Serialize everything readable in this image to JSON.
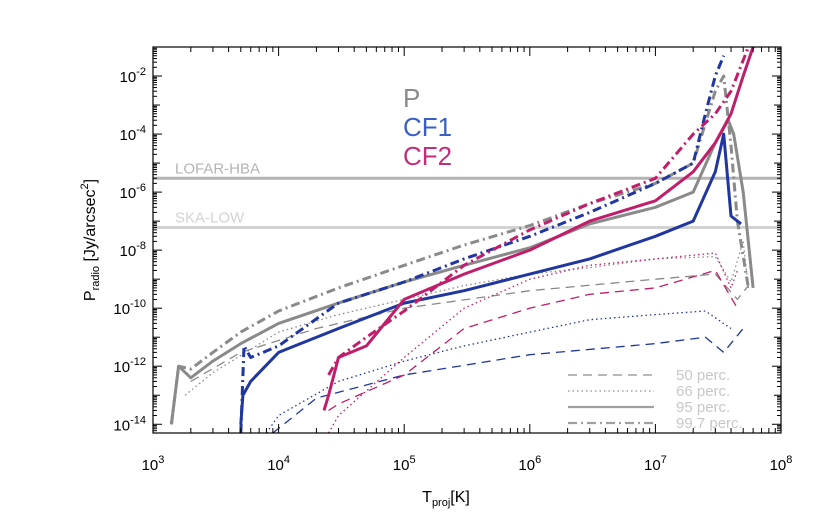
{
  "chart_data": {
    "type": "line",
    "xscale": "log",
    "yscale": "log",
    "xlim": [
      1000,
      100000000
    ],
    "ylim": [
      5e-15,
      0.1
    ],
    "x_ticks": [
      {
        "value": 1000,
        "base": "10",
        "exp": "3"
      },
      {
        "value": 10000,
        "base": "10",
        "exp": "4"
      },
      {
        "value": 100000,
        "base": "10",
        "exp": "5"
      },
      {
        "value": 1000000,
        "base": "10",
        "exp": "6"
      },
      {
        "value": 10000000,
        "base": "10",
        "exp": "7"
      },
      {
        "value": 100000000,
        "base": "10",
        "exp": "8"
      }
    ],
    "y_ticks": [
      {
        "value": 1e-14,
        "base": "10",
        "exp": "-14"
      },
      {
        "value": 1e-12,
        "base": "10",
        "exp": "-12"
      },
      {
        "value": 1e-10,
        "base": "10",
        "exp": "-10"
      },
      {
        "value": 1e-08,
        "base": "10",
        "exp": "-8"
      },
      {
        "value": 1e-06,
        "base": "10",
        "exp": "-6"
      },
      {
        "value": 0.0001,
        "base": "10",
        "exp": "-4"
      },
      {
        "value": 0.01,
        "base": "10",
        "exp": "-2"
      }
    ],
    "xlabel": {
      "main": "T",
      "sub": "proj",
      "rest": "[K]"
    },
    "ylabel": {
      "main": "P",
      "sub": "radio",
      "rest": " [Jy/arcsec",
      "sup": "2",
      "end": "]"
    },
    "hlines": [
      {
        "name": "LOFAR-HBA",
        "value": 3e-06,
        "color": "#b4b4b4"
      },
      {
        "name": "SKA-LOW",
        "value": 6e-08,
        "color": "#d2d2d2"
      }
    ],
    "names": [
      {
        "label": "P",
        "color": "#8a8a8a"
      },
      {
        "label": "CF1",
        "color": "#3a5fc8"
      },
      {
        "label": "CF2",
        "color": "#c0307a"
      }
    ],
    "legend": [
      {
        "label": "50 perc.",
        "style": "dashed"
      },
      {
        "label": "66 perc.",
        "style": "dotted"
      },
      {
        "label": "95 perc.",
        "style": "solid"
      },
      {
        "label": "99.7 perc.",
        "style": "dashdot"
      }
    ],
    "series": [
      {
        "name": "P 50 perc.",
        "color": "#8a8a8a",
        "style": "dashed",
        "x": [
          2000,
          5000,
          20000,
          100000,
          1000000,
          10000000,
          30000000,
          45000000,
          55000000
        ],
        "y": [
          3e-13,
          3e-12,
          2e-11,
          1e-10,
          4e-10,
          1e-09,
          1.5e-09,
          2e-10,
          6e-10
        ]
      },
      {
        "name": "P 66 perc.",
        "color": "#8a8a8a",
        "style": "dotted",
        "x": [
          1800,
          3000,
          10000,
          30000,
          100000,
          300000,
          1000000,
          3000000,
          10000000,
          30000000,
          40000000,
          50000000,
          55000000
        ],
        "y": [
          1e-13,
          6e-13,
          1.5e-11,
          6e-11,
          2e-10,
          6e-10,
          1.5e-09,
          2.5e-09,
          5e-09,
          6e-09,
          8e-10,
          2e-08,
          5e-10
        ]
      },
      {
        "name": "P 95 perc.",
        "color": "#8a8a8a",
        "style": "solid",
        "x": [
          1400,
          1600,
          2000,
          3000,
          5000,
          10000,
          30000,
          100000,
          300000,
          1000000,
          3000000,
          10000000,
          20000000,
          30000000,
          38000000,
          42000000,
          50000000,
          60000000
        ],
        "y": [
          1e-14,
          1e-12,
          4e-13,
          1.5e-12,
          6e-12,
          3e-11,
          1.5e-10,
          8e-10,
          3e-09,
          1.2e-08,
          8e-08,
          3e-07,
          1e-06,
          5e-05,
          0.0003,
          0.0001,
          1e-06,
          5e-10
        ]
      },
      {
        "name": "P 99.7 perc.",
        "color": "#8a8a8a",
        "style": "dashdot",
        "x": [
          1400,
          1600,
          2000,
          3000,
          5000,
          10000,
          30000,
          100000,
          300000,
          1000000,
          3000000,
          10000000,
          20000000,
          30000000,
          35000000,
          40000000,
          45000000,
          55000000
        ],
        "y": [
          1e-14,
          1e-12,
          8e-13,
          3e-12,
          1.5e-11,
          8e-11,
          5e-10,
          3e-09,
          1.5e-08,
          7e-08,
          4e-07,
          2e-06,
          1e-05,
          0.003,
          0.01,
          4e-05,
          1e-07,
          5e-10
        ]
      },
      {
        "name": "CF1 50 perc.",
        "color": "#2036a0",
        "style": "dashed",
        "x": [
          9000,
          20000,
          100000,
          1000000,
          10000000,
          25000000,
          35000000,
          50000000
        ],
        "y": [
          5e-15,
          8e-14,
          5e-13,
          2.5e-12,
          6e-12,
          1e-11,
          3e-12,
          2e-11
        ]
      },
      {
        "name": "CF1 66 perc.",
        "color": "#2036a0",
        "style": "dotted",
        "x": [
          8000,
          10000,
          30000,
          100000,
          300000,
          1000000,
          3000000,
          10000000,
          25000000,
          40000000
        ],
        "y": [
          5e-15,
          2e-14,
          3e-13,
          1.5e-12,
          5e-12,
          1.5e-11,
          4e-11,
          6e-11,
          8e-11,
          2e-11
        ]
      },
      {
        "name": "CF1 95 perc.",
        "color": "#2036a0",
        "style": "solid",
        "x": [
          5000,
          5200,
          6000,
          10000,
          30000,
          100000,
          300000,
          1000000,
          3000000,
          10000000,
          20000000,
          30000000,
          35000000,
          40000000,
          48000000
        ],
        "y": [
          1e-14,
          1e-13,
          3e-13,
          3e-12,
          2e-11,
          1.5e-10,
          4e-10,
          1.5e-09,
          5e-09,
          3e-08,
          1e-07,
          5e-06,
          0.0001,
          1.5e-07,
          8e-08
        ]
      },
      {
        "name": "CF1 99.7 perc.",
        "color": "#2036a0",
        "style": "dashdot",
        "x": [
          5000,
          5300,
          6000,
          10000,
          30000,
          100000,
          300000,
          1000000,
          3000000,
          10000000,
          20000000,
          25000000,
          30000000,
          35000000
        ],
        "y": [
          5e-15,
          5e-12,
          2e-12,
          5e-12,
          1.5e-10,
          8e-10,
          5e-09,
          3e-08,
          2e-07,
          2e-06,
          1e-05,
          0.0005,
          0.01,
          0.05
        ]
      },
      {
        "name": "CF2 50 perc.",
        "color": "#c01e6a",
        "style": "dashed",
        "x": [
          25000,
          30000,
          100000,
          300000,
          1000000,
          3000000,
          10000000,
          30000000,
          45000000
        ],
        "y": [
          3e-14,
          5e-14,
          5e-13,
          2e-11,
          1e-10,
          3e-10,
          5e-10,
          2e-09,
          1e-10
        ]
      },
      {
        "name": "CF2 66 perc.",
        "color": "#c01e6a",
        "style": "dotted",
        "x": [
          25000,
          30000,
          100000,
          300000,
          1000000,
          3000000,
          10000000,
          30000000,
          40000000,
          45000000
        ],
        "y": [
          5e-15,
          2e-14,
          2e-12,
          1e-10,
          1e-09,
          3e-09,
          5e-09,
          8e-09,
          5e-10,
          2e-09
        ]
      },
      {
        "name": "CF2 95 perc.",
        "color": "#c01e6a",
        "style": "solid",
        "x": [
          23000,
          25000,
          30000,
          50000,
          100000,
          300000,
          1000000,
          3000000,
          10000000,
          20000000,
          30000000,
          40000000,
          50000000,
          60000000
        ],
        "y": [
          3e-14,
          1e-13,
          2e-12,
          5e-12,
          2e-10,
          1.5e-09,
          1e-08,
          1e-07,
          5e-07,
          5e-06,
          5e-05,
          0.0005,
          0.01,
          0.1
        ]
      },
      {
        "name": "CF2 99.7 perc.",
        "color": "#c01e6a",
        "style": "dashdot",
        "x": [
          25000,
          30000,
          50000,
          100000,
          300000,
          1000000,
          3000000,
          10000000,
          20000000,
          30000000,
          40000000,
          55000000
        ],
        "y": [
          5e-13,
          2e-12,
          1e-11,
          8e-11,
          3e-09,
          5e-08,
          4e-07,
          3e-06,
          0.0001,
          0.0005,
          0.003,
          0.1
        ]
      }
    ]
  }
}
